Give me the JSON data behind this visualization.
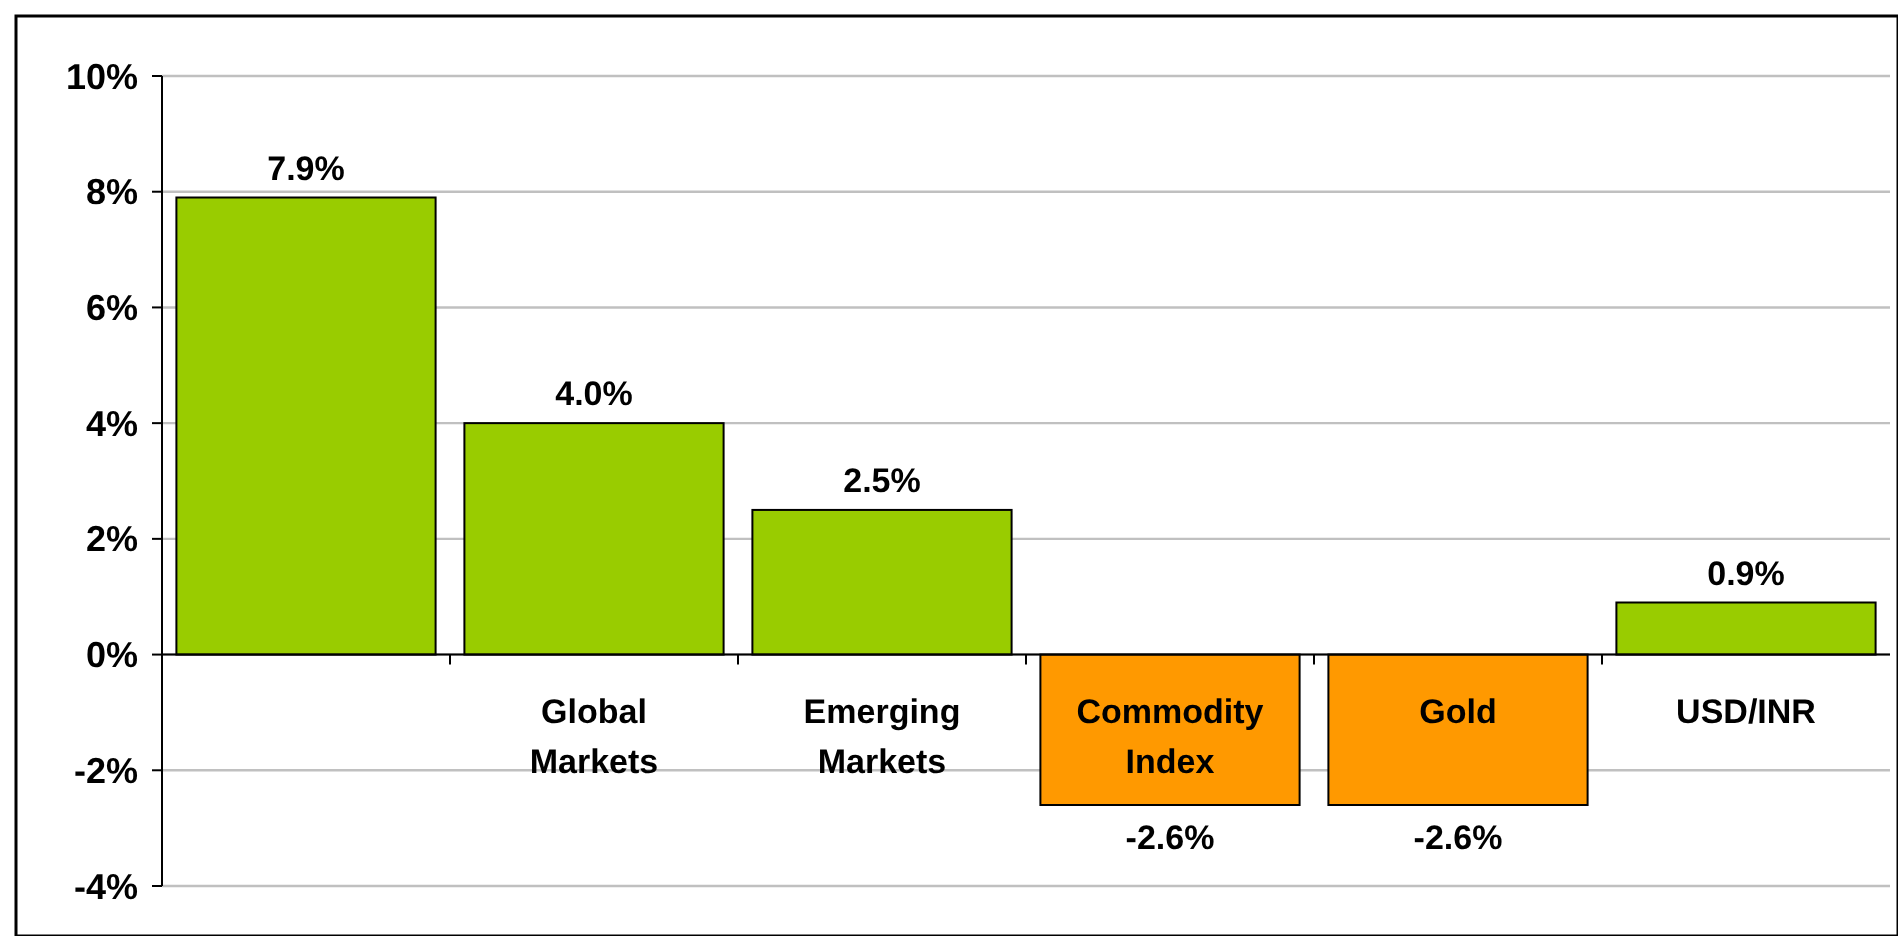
{
  "chart_data": {
    "type": "bar",
    "categories": [
      null,
      "Global Markets",
      "Emerging Markets",
      "Commodity Index",
      "Gold",
      "USD/INR"
    ],
    "values": [
      7.9,
      4.0,
      2.5,
      -2.6,
      -2.6,
      0.9
    ],
    "colors": [
      "#99cc00",
      "#99cc00",
      "#99cc00",
      "#ff9900",
      "#ff9900",
      "#99cc00"
    ],
    "value_labels": [
      "7.9%",
      "4.0%",
      "2.5%",
      "-2.6%",
      "-2.6%",
      "0.9%"
    ],
    "ylim": [
      -4,
      10
    ],
    "yticks": [
      {
        "value": -4,
        "label": "-4%"
      },
      {
        "value": -2,
        "label": "-2%"
      },
      {
        "value": 0,
        "label": "0%"
      },
      {
        "value": 2,
        "label": "2%"
      },
      {
        "value": 4,
        "label": "4%"
      },
      {
        "value": 6,
        "label": "6%"
      },
      {
        "value": 8,
        "label": "8%"
      },
      {
        "value": 10,
        "label": "10%"
      }
    ],
    "grid": "y"
  }
}
